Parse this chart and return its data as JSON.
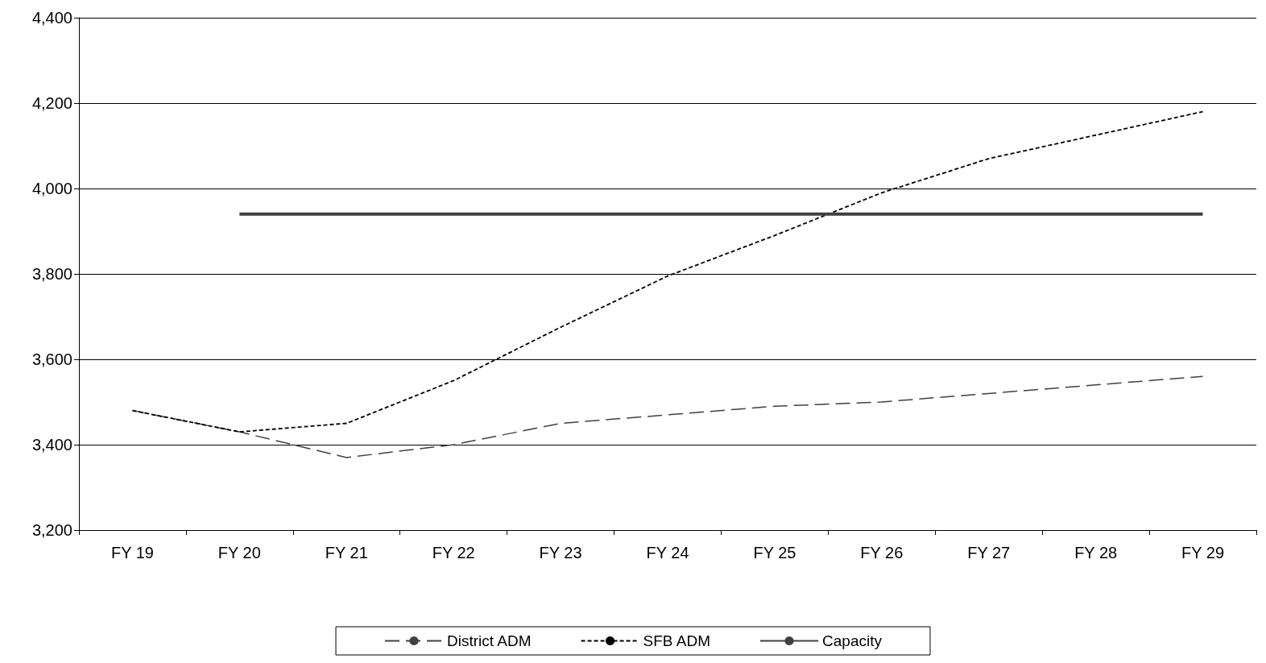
{
  "chart_data": {
    "type": "line",
    "categories": [
      "FY 19",
      "FY 20",
      "FY 21",
      "FY 22",
      "FY 23",
      "FY 24",
      "FY 25",
      "FY 26",
      "FY 27",
      "FY 28",
      "FY 29"
    ],
    "series": [
      {
        "name": "District ADM",
        "color": "#404040",
        "line_style": "dashed",
        "values": [
          3480,
          3430,
          3370,
          3400,
          3450,
          3470,
          3490,
          3500,
          3520,
          3540,
          3560
        ]
      },
      {
        "name": "SFB ADM",
        "color": "#000000",
        "line_style": "dotted",
        "values": [
          3480,
          3430,
          3450,
          3550,
          3675,
          3795,
          3890,
          3990,
          4070,
          4125,
          4180
        ]
      },
      {
        "name": "Capacity",
        "color": "#404040",
        "line_style": "solid",
        "values": [
          null,
          3940,
          3940,
          3940,
          3940,
          3940,
          3940,
          3940,
          3940,
          3940,
          3940
        ]
      }
    ],
    "ylim": [
      3200,
      4400
    ],
    "yticks": [
      {
        "value": 3200,
        "label": "3,200"
      },
      {
        "value": 3400,
        "label": "3,400"
      },
      {
        "value": 3600,
        "label": "3,600"
      },
      {
        "value": 3800,
        "label": "3,800"
      },
      {
        "value": 4000,
        "label": "4,000"
      },
      {
        "value": 4200,
        "label": "4,200"
      },
      {
        "value": 4400,
        "label": "4,400"
      }
    ],
    "grid": "y",
    "legend": "bottom",
    "marker": "none"
  }
}
